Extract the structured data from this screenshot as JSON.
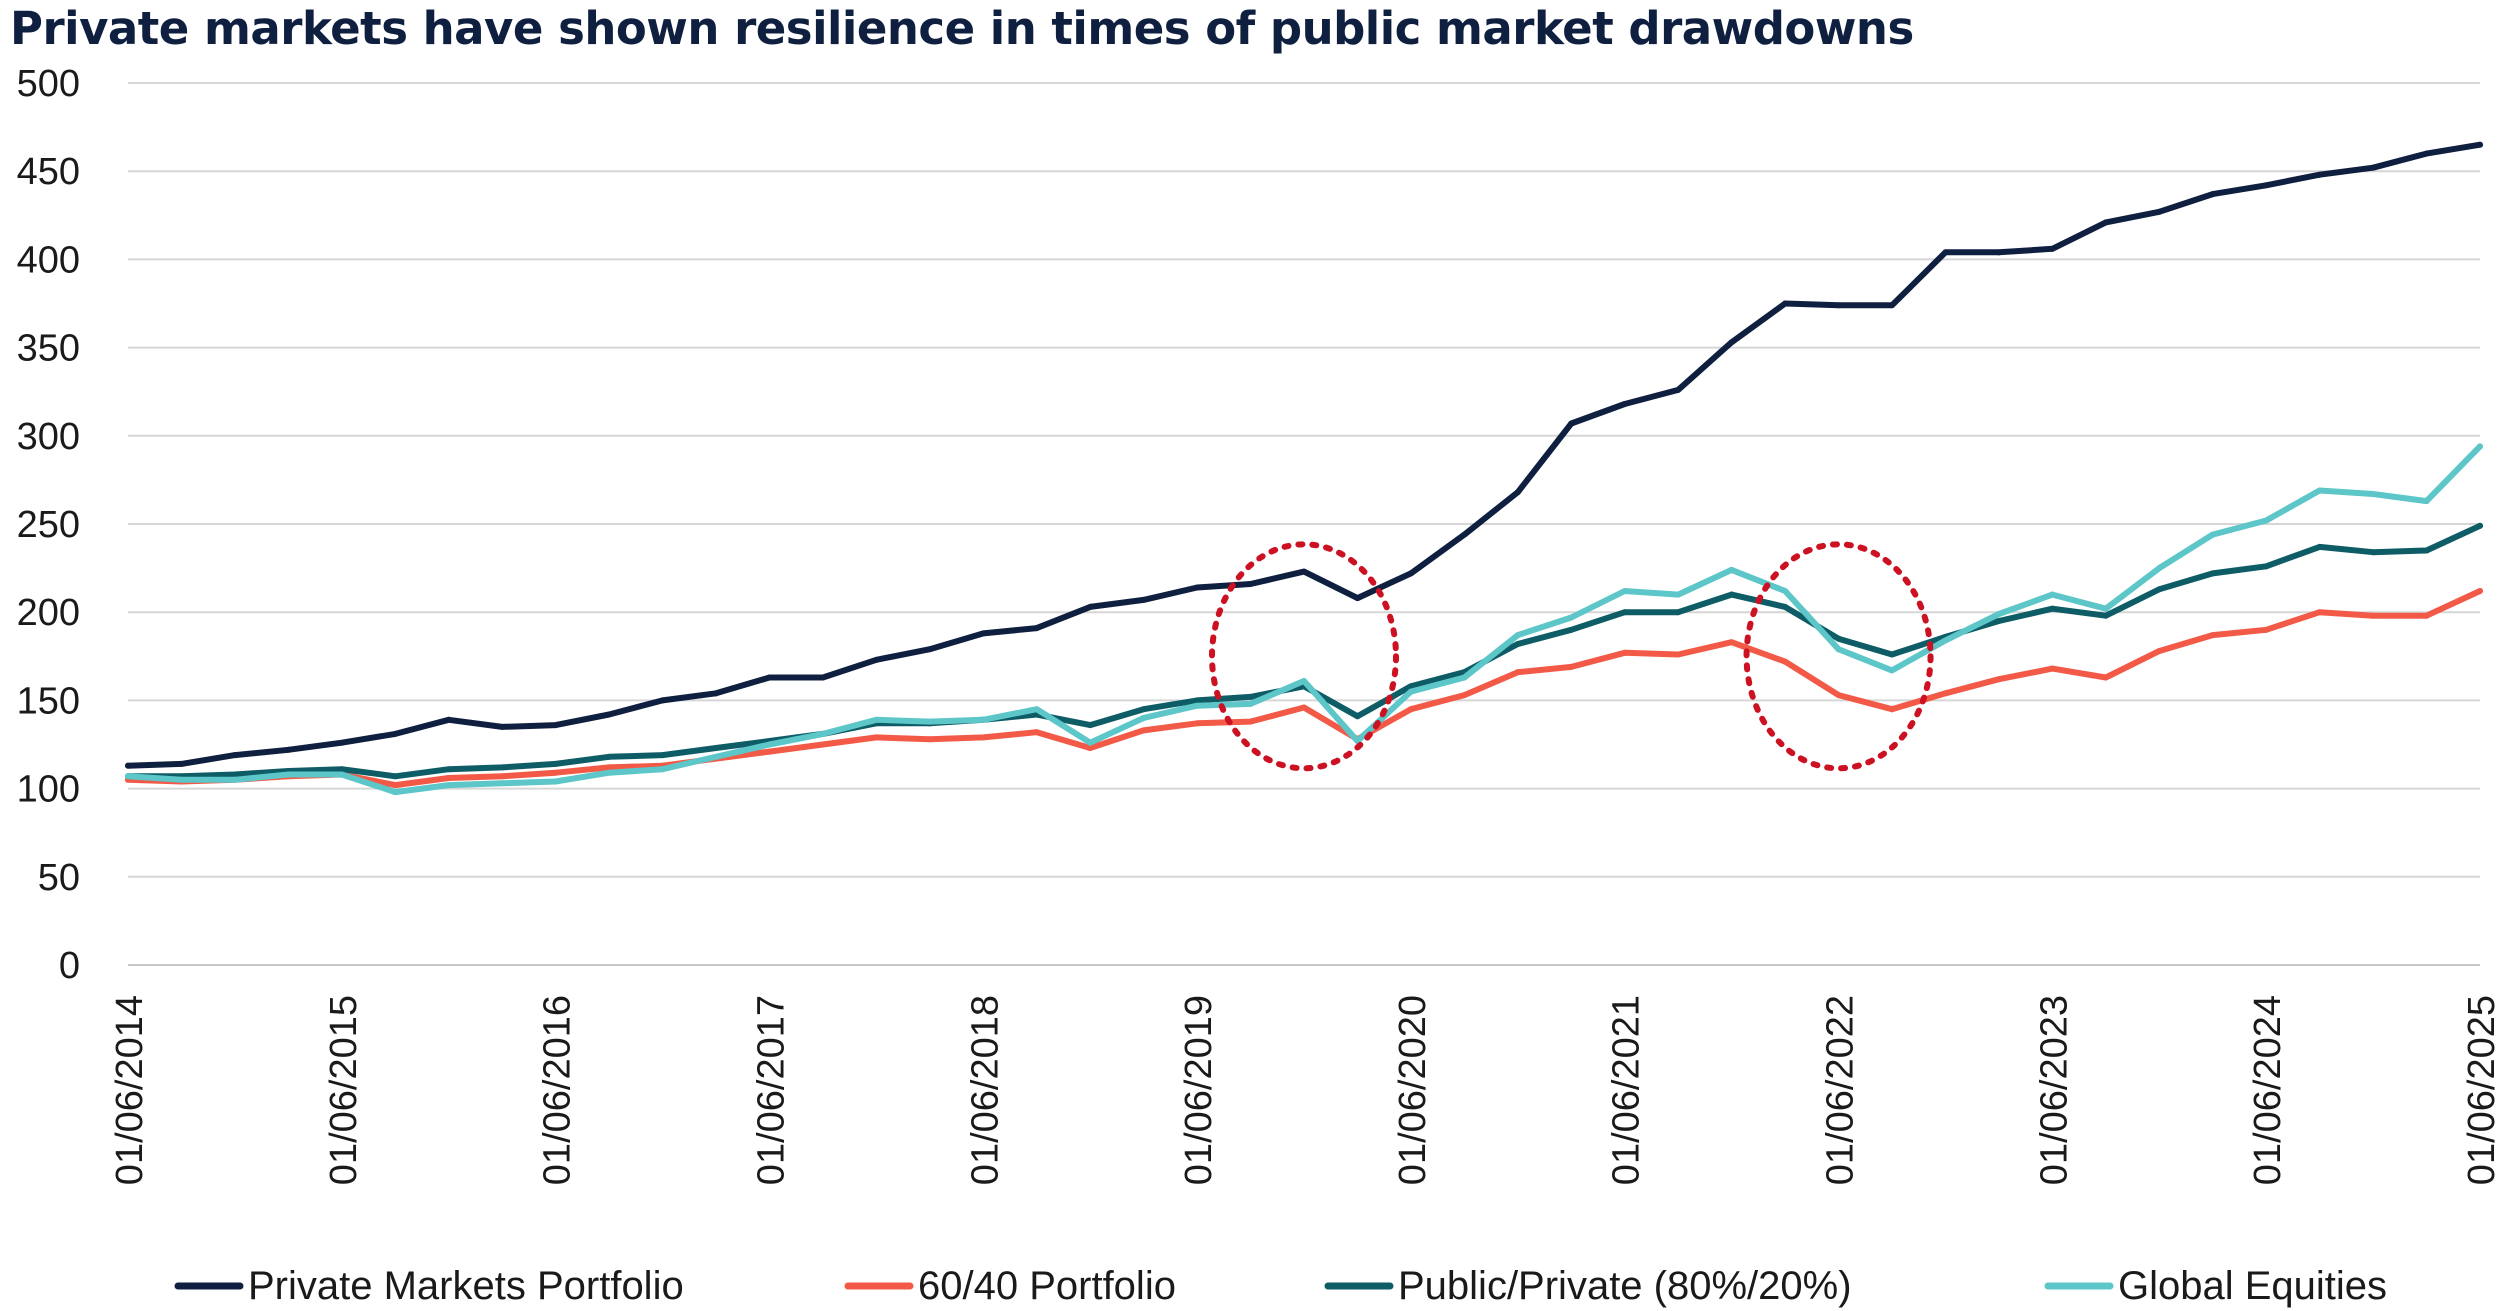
{
  "chart_data": {
    "type": "line",
    "title": "Private markets have shown resilience in times of public market drawdowns",
    "xlabel": "",
    "ylabel": "",
    "ylim": [
      0,
      500
    ],
    "yticks": [
      "0",
      "50",
      "100",
      "150",
      "200",
      "250",
      "300",
      "350",
      "400",
      "450",
      "500"
    ],
    "xticks": [
      "01/06/2014",
      "01/06/2015",
      "01/06/2016",
      "01/06/2017",
      "01/06/2018",
      "01/06/2019",
      "01/06/2020",
      "01/06/2021",
      "01/06/2022",
      "01/06/2023",
      "01/06/2024",
      "01/06/2025"
    ],
    "x": [
      "01/06/2014",
      "01/09/2014",
      "01/12/2014",
      "01/03/2015",
      "01/06/2015",
      "01/09/2015",
      "01/12/2015",
      "01/03/2016",
      "01/06/2016",
      "01/09/2016",
      "01/12/2016",
      "01/03/2017",
      "01/06/2017",
      "01/09/2017",
      "01/12/2017",
      "01/03/2018",
      "01/06/2018",
      "01/09/2018",
      "01/12/2018",
      "01/03/2019",
      "01/06/2019",
      "01/09/2019",
      "01/12/2019",
      "01/03/2020",
      "01/06/2020",
      "01/09/2020",
      "01/12/2020",
      "01/03/2021",
      "01/06/2021",
      "01/09/2021",
      "01/12/2021",
      "01/03/2022",
      "01/06/2022",
      "01/09/2022",
      "01/12/2022",
      "01/03/2023",
      "01/06/2023",
      "01/09/2023",
      "01/12/2023",
      "01/03/2024",
      "01/06/2024",
      "01/09/2024",
      "01/12/2024",
      "01/03/2025",
      "01/06/2025"
    ],
    "grid": true,
    "legend_position": "bottom",
    "series": [
      {
        "name": "Private Markets Portfolio",
        "color": "#0f1f40",
        "values": [
          113,
          114,
          119,
          122,
          126,
          131,
          139,
          135,
          136,
          142,
          150,
          154,
          163,
          163,
          173,
          179,
          188,
          191,
          203,
          207,
          214,
          216,
          223,
          208,
          222,
          244,
          268,
          307,
          318,
          326,
          353,
          375,
          374,
          374,
          404,
          404,
          406,
          421,
          427,
          437,
          442,
          448,
          452,
          460,
          465
        ]
      },
      {
        "name": "60/40 Portfolio",
        "color": "#f25a47",
        "values": [
          105,
          104,
          105,
          107,
          108,
          102,
          106,
          107,
          109,
          112,
          113,
          117,
          121,
          125,
          129,
          128,
          129,
          132,
          123,
          133,
          137,
          138,
          146,
          128,
          145,
          153,
          166,
          169,
          177,
          176,
          183,
          172,
          153,
          145,
          154,
          162,
          168,
          163,
          178,
          187,
          190,
          200,
          198,
          198,
          212
        ]
      },
      {
        "name": "Public/Private (80%/20%)",
        "color": "#0d5c66",
        "values": [
          107,
          107,
          108,
          110,
          111,
          107,
          111,
          112,
          114,
          118,
          119,
          123,
          127,
          131,
          137,
          137,
          139,
          142,
          136,
          145,
          150,
          152,
          158,
          141,
          158,
          166,
          182,
          190,
          200,
          200,
          210,
          203,
          185,
          176,
          186,
          195,
          202,
          198,
          213,
          222,
          226,
          237,
          234,
          235,
          249
        ]
      },
      {
        "name": "Global Equities",
        "color": "#5cc6c8",
        "values": [
          107,
          105,
          105,
          108,
          108,
          98,
          102,
          103,
          104,
          109,
          111,
          118,
          125,
          131,
          139,
          138,
          139,
          145,
          126,
          140,
          147,
          148,
          161,
          127,
          155,
          163,
          187,
          197,
          212,
          210,
          224,
          212,
          179,
          167,
          184,
          199,
          210,
          202,
          225,
          244,
          252,
          269,
          267,
          263,
          294
        ]
      }
    ],
    "annotations": [
      {
        "type": "dotted-ellipse",
        "color": "#cc1122",
        "x_center": "01/12/2019",
        "y_center": 175
      },
      {
        "type": "dotted-ellipse",
        "color": "#cc1122",
        "x_center": "01/06/2022",
        "y_center": 175
      }
    ]
  }
}
